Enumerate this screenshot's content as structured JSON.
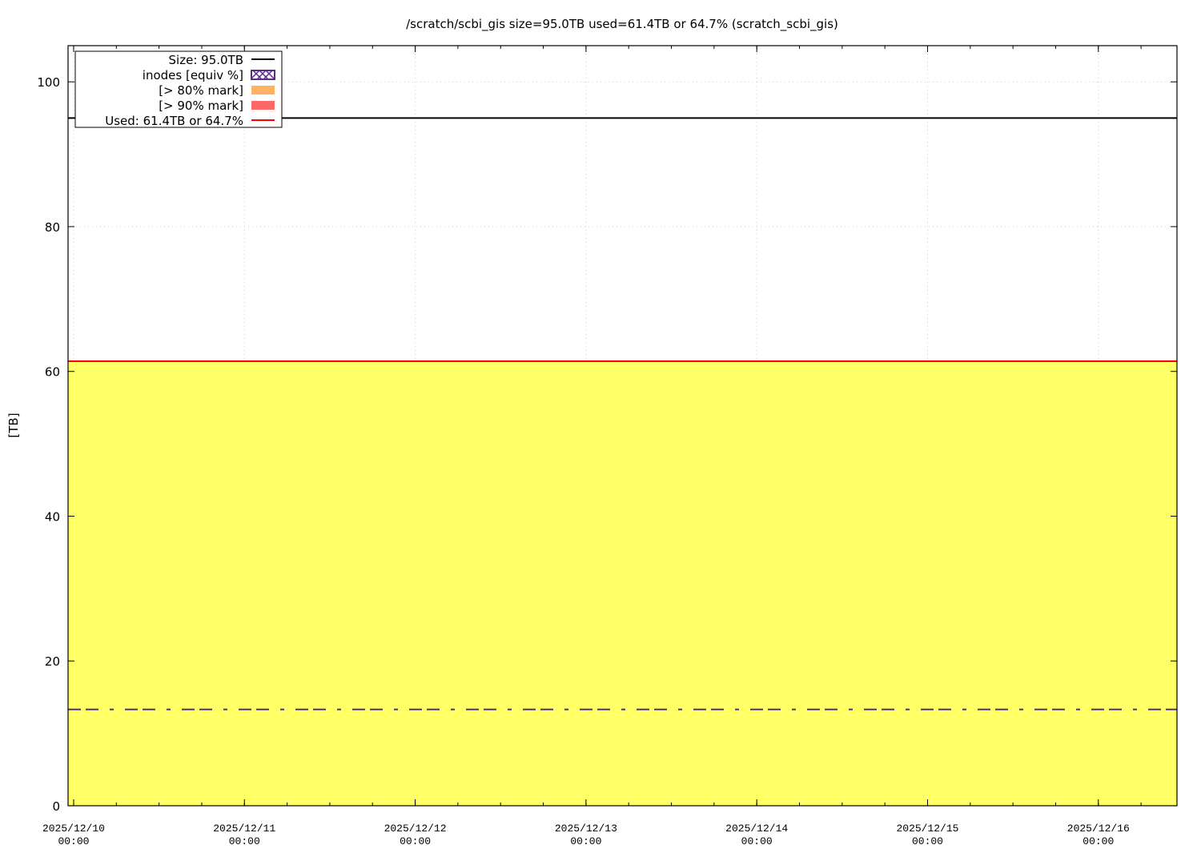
{
  "chart_data": {
    "type": "area",
    "title": "/scratch/scbi_gis size=95.0TB used=61.4TB or 64.7% (scratch_scbi_gis)",
    "xlabel": "",
    "ylabel": "[TB]",
    "xlim": [
      "2025-12-09 23:13",
      "2025-12-16 11:03"
    ],
    "ylim": [
      0,
      105
    ],
    "x_ticks": [
      {
        "date": "2025-12-10 00:00",
        "line1": "2025/12/10",
        "line2": "00:00"
      },
      {
        "date": "2025-12-11 00:00",
        "line1": "2025/12/11",
        "line2": "00:00"
      },
      {
        "date": "2025-12-12 00:00",
        "line1": "2025/12/12",
        "line2": "00:00"
      },
      {
        "date": "2025-12-13 00:00",
        "line1": "2025/12/13",
        "line2": "00:00"
      },
      {
        "date": "2025-12-14 00:00",
        "line1": "2025/12/14",
        "line2": "00:00"
      },
      {
        "date": "2025-12-15 00:00",
        "line1": "2025/12/15",
        "line2": "00:00"
      },
      {
        "date": "2025-12-16 00:00",
        "line1": "2025/12/16",
        "line2": "00:00"
      }
    ],
    "y_ticks": [
      "0",
      "20",
      "40",
      "60",
      "80",
      "100"
    ],
    "grid": true,
    "legend_position": "top-left",
    "series": [
      {
        "name": "Size: 95.0TB",
        "kind": "line",
        "color": "#000000",
        "x": [
          "2025-12-09 23:13",
          "2025-12-16 11:03"
        ],
        "y": [
          95.0,
          95.0
        ]
      },
      {
        "name": "inodes [equiv %]",
        "kind": "dash-dot line",
        "color": "#5b2a8e",
        "x": [
          "2025-12-09 23:13",
          "2025-12-16 11:03"
        ],
        "y": [
          13.3,
          13.3
        ]
      },
      {
        "name": "[> 80% mark]",
        "kind": "fill",
        "color": "#ffb060",
        "x": [],
        "y": []
      },
      {
        "name": "[> 90% mark]",
        "kind": "fill",
        "color": "#ff6666",
        "x": [],
        "y": []
      },
      {
        "name": "Used: 61.4TB or 64.7%",
        "kind": "line+fill",
        "color": "#ff0000",
        "fill_color": "#ffff66",
        "x": [
          "2025-12-09 23:13",
          "2025-12-16 11:03"
        ],
        "y": [
          61.4,
          61.4
        ]
      }
    ]
  }
}
